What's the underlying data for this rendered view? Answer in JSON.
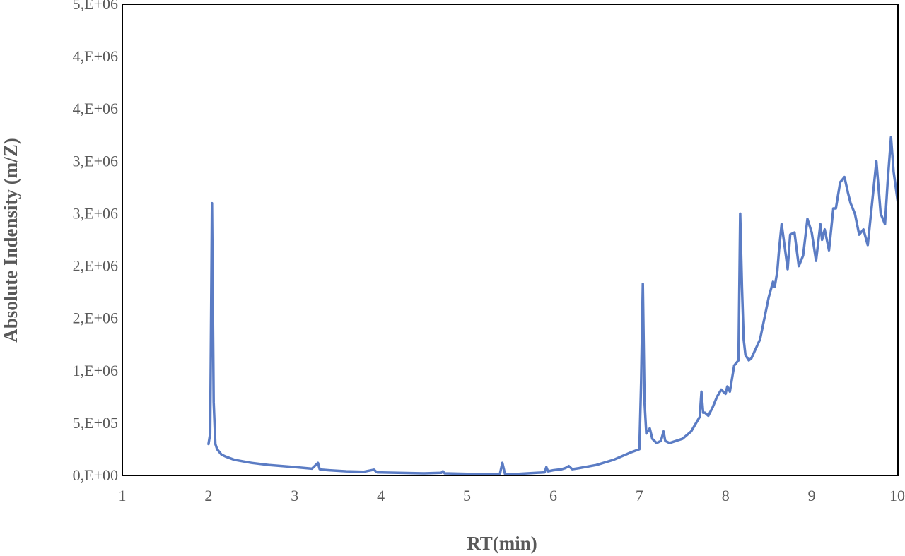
{
  "chart_data": {
    "type": "line",
    "title": "",
    "xlabel": "RT(min)",
    "ylabel": "Absolute Indensity (m/Z)",
    "xlim": [
      1,
      10
    ],
    "ylim": [
      0,
      4500000
    ],
    "grid": false,
    "legend": "none",
    "x_ticks": [
      1,
      2,
      3,
      4,
      5,
      6,
      7,
      8,
      9,
      10
    ],
    "x_tick_labels": [
      "1",
      "2",
      "3",
      "4",
      "5",
      "6",
      "7",
      "8",
      "9",
      "10"
    ],
    "y_ticks": [
      0,
      500000,
      1000000,
      1500000,
      2000000,
      2500000,
      3000000,
      3500000,
      4000000,
      4500000
    ],
    "y_tick_labels": [
      "0,E+00",
      "5,E+05",
      "1,E+06",
      "2,E+06",
      "2,E+06",
      "3,E+06",
      "3,E+06",
      "4,E+06",
      "4,E+06",
      "5,E+06"
    ],
    "series": [
      {
        "color": "#5b7cc4",
        "x": [
          2.0,
          2.02,
          2.04,
          2.06,
          2.08,
          2.1,
          2.15,
          2.2,
          2.3,
          2.5,
          2.7,
          3.0,
          3.2,
          3.27,
          3.29,
          3.31,
          3.4,
          3.6,
          3.8,
          3.92,
          3.94,
          3.96,
          4.2,
          4.5,
          4.7,
          4.72,
          4.74,
          5.0,
          5.2,
          5.38,
          5.41,
          5.44,
          5.5,
          5.7,
          5.9,
          5.92,
          5.94,
          6.0,
          6.1,
          6.14,
          6.18,
          6.22,
          6.3,
          6.5,
          6.7,
          6.9,
          7.0,
          7.02,
          7.04,
          7.06,
          7.08,
          7.12,
          7.15,
          7.2,
          7.25,
          7.28,
          7.3,
          7.35,
          7.5,
          7.6,
          7.7,
          7.72,
          7.74,
          7.76,
          7.8,
          7.85,
          7.9,
          7.95,
          8.0,
          8.02,
          8.05,
          8.1,
          8.15,
          8.17,
          8.19,
          8.21,
          8.23,
          8.27,
          8.3,
          8.4,
          8.5,
          8.55,
          8.57,
          8.6,
          8.62,
          8.65,
          8.7,
          8.72,
          8.75,
          8.8,
          8.85,
          8.9,
          8.95,
          9.0,
          9.05,
          9.1,
          9.12,
          9.15,
          9.2,
          9.25,
          9.28,
          9.33,
          9.38,
          9.42,
          9.45,
          9.5,
          9.55,
          9.6,
          9.65,
          9.7,
          9.75,
          9.8,
          9.85,
          9.88,
          9.92,
          9.95,
          10.0
        ],
        "y": [
          300000,
          400000,
          2600000,
          700000,
          300000,
          250000,
          200000,
          180000,
          150000,
          120000,
          100000,
          80000,
          65000,
          120000,
          60000,
          55000,
          50000,
          40000,
          35000,
          55000,
          40000,
          30000,
          25000,
          20000,
          25000,
          40000,
          20000,
          15000,
          12000,
          10000,
          120000,
          15000,
          10000,
          20000,
          30000,
          80000,
          40000,
          50000,
          60000,
          70000,
          90000,
          60000,
          70000,
          100000,
          150000,
          220000,
          250000,
          900000,
          1830000,
          700000,
          400000,
          450000,
          350000,
          310000,
          330000,
          420000,
          330000,
          310000,
          350000,
          420000,
          560000,
          800000,
          600000,
          600000,
          570000,
          650000,
          750000,
          820000,
          780000,
          850000,
          800000,
          1050000,
          1100000,
          2500000,
          1800000,
          1300000,
          1150000,
          1100000,
          1120000,
          1300000,
          1700000,
          1850000,
          1800000,
          1950000,
          2150000,
          2400000,
          2100000,
          1970000,
          2300000,
          2320000,
          2000000,
          2100000,
          2450000,
          2320000,
          2050000,
          2400000,
          2250000,
          2350000,
          2150000,
          2550000,
          2550000,
          2800000,
          2850000,
          2700000,
          2600000,
          2500000,
          2300000,
          2350000,
          2200000,
          2600000,
          3000000,
          2500000,
          2400000,
          2800000,
          3230000,
          2900000,
          2600000
        ]
      }
    ]
  }
}
